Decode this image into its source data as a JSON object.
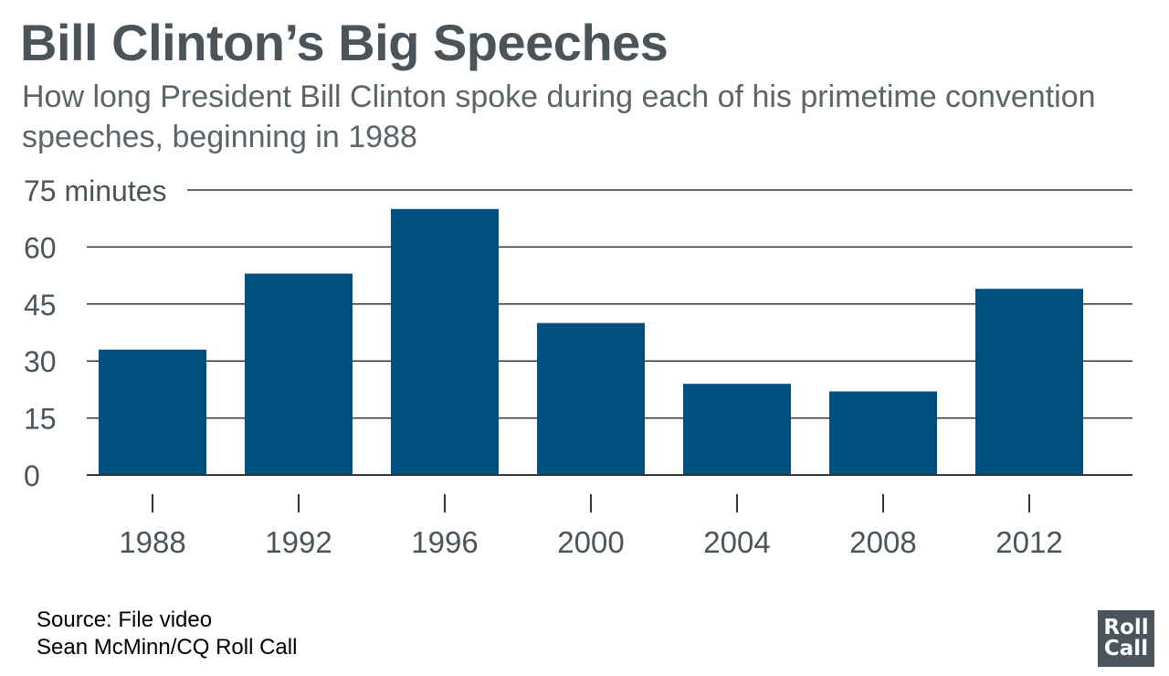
{
  "chart_data": {
    "type": "bar",
    "title": "Bill Clinton’s Big Speeches",
    "subtitle": "How long President Bill Clinton spoke during each of his primetime convention speeches, beginning in 1988",
    "categories": [
      "1988",
      "1992",
      "1996",
      "2000",
      "2004",
      "2008",
      "2012"
    ],
    "values": [
      33,
      53,
      70,
      40,
      24,
      22,
      49
    ],
    "ylim": [
      0,
      75
    ],
    "yticks": [
      0,
      15,
      30,
      45,
      60,
      75
    ],
    "ytick_labels": [
      "0",
      "15",
      "30",
      "45",
      "60",
      "75 minutes"
    ],
    "grid": true,
    "bar_color": "#00507f"
  },
  "footer": {
    "source": "Source: File video",
    "credit": "Sean McMinn/CQ Roll Call"
  },
  "logo": {
    "line1": "Roll",
    "line2": "Call"
  }
}
